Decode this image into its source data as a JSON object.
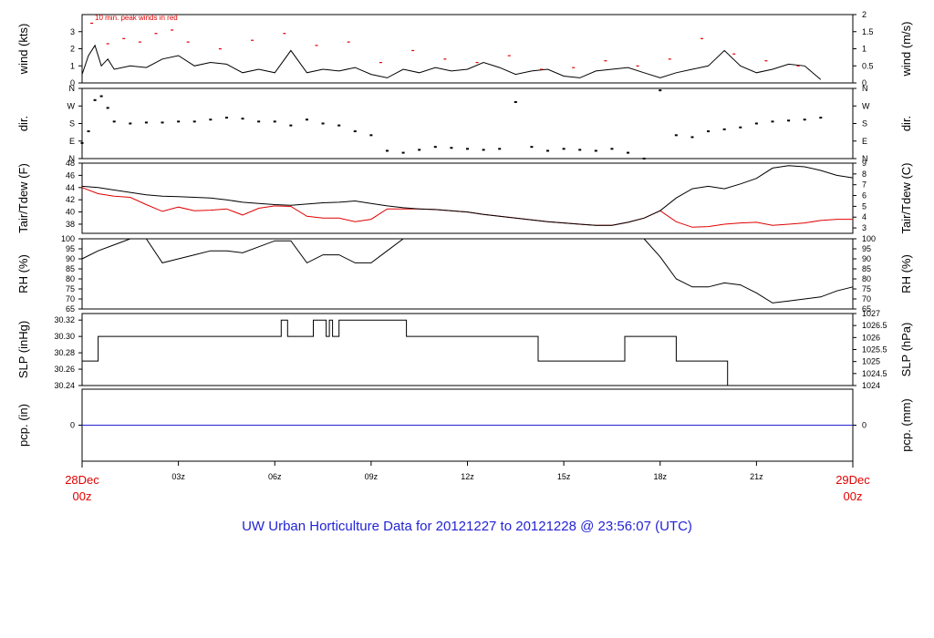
{
  "footer": {
    "title": "UW Urban Horticulture Data for 20121227  to  20121228 @ 23:56:07  (UTC)"
  },
  "x_axis": {
    "ticks": [
      "03z",
      "06z",
      "09z",
      "12z",
      "15z",
      "18z",
      "21z"
    ],
    "start_label": [
      "28Dec",
      "00z"
    ],
    "end_label": [
      "29Dec",
      "00z"
    ]
  },
  "panels": {
    "wind": {
      "left_title": "wind (kts)",
      "right_title": "wind (m/s)",
      "left_ticks": [
        "0",
        "1",
        "2",
        "3"
      ],
      "right_ticks": [
        "0",
        "0.5",
        "1",
        "1.5",
        "2"
      ],
      "annotation": "10 min. peak winds in red"
    },
    "dir": {
      "left_title": "dir.",
      "right_title": "dir.",
      "left_ticks": [
        "N",
        "E",
        "S",
        "W",
        "N"
      ],
      "right_ticks": [
        "N",
        "E",
        "S",
        "W",
        "N"
      ]
    },
    "temp": {
      "left_title": "Tair/Tdew (F)",
      "right_title": "Tair/Tdew (C)",
      "left_ticks": [
        "38",
        "40",
        "42",
        "44",
        "46",
        "48"
      ],
      "right_ticks": [
        "3",
        "4",
        "5",
        "6",
        "7",
        "8",
        "9"
      ]
    },
    "rh": {
      "left_title": "RH (%)",
      "right_title": "RH (%)",
      "left_ticks": [
        "65",
        "70",
        "75",
        "80",
        "85",
        "90",
        "95",
        "100"
      ],
      "right_ticks": [
        "65",
        "70",
        "75",
        "80",
        "85",
        "90",
        "95",
        "100"
      ]
    },
    "slp": {
      "left_title": "SLP (inHg)",
      "right_title": "SLP (hPa)",
      "left_ticks": [
        "30.24",
        "30.26",
        "30.28",
        "30.30",
        "30.32"
      ],
      "right_ticks": [
        "1024",
        "1024.5",
        "1025",
        "1025.5",
        "1026",
        "1026.5",
        "1027"
      ]
    },
    "pcp": {
      "left_title": "pcp. (in)",
      "right_title": "pcp. (mm)",
      "left_ticks": [
        "0"
      ],
      "right_ticks": [
        "0"
      ]
    }
  },
  "colors": {
    "series_main": "#000000",
    "series_secondary": "#e00000",
    "precip": "#2323d6",
    "footer": "#2323d6",
    "date_labels": "#e00000"
  },
  "chart_data": [
    {
      "type": "line",
      "panel": "wind",
      "xlabel": "",
      "ylabel": "wind (kts)",
      "ylim": [
        0,
        4
      ],
      "series": [
        {
          "values_hours": [
            0,
            0.2,
            0.4,
            0.6,
            0.8,
            1,
            1.5,
            2,
            2.5,
            3,
            3.5,
            4,
            4.5,
            5,
            5.5,
            6,
            6.5,
            7,
            7.5,
            8,
            8.5,
            9,
            9.5,
            10,
            10.5,
            11,
            11.5,
            12,
            12.5,
            13,
            13.5,
            14,
            14.5,
            15,
            15.5,
            16,
            16.5,
            17,
            17.5,
            18,
            18.5,
            19,
            19.5,
            20,
            20.5,
            21,
            21.5,
            22,
            22.5,
            23
          ],
          "values": [
            0.5,
            1.6,
            2.2,
            1.0,
            1.4,
            0.8,
            1.0,
            0.9,
            1.4,
            1.6,
            1.0,
            1.2,
            1.1,
            0.6,
            0.8,
            0.6,
            1.9,
            0.6,
            0.8,
            0.7,
            0.9,
            0.5,
            0.3,
            0.8,
            0.6,
            0.9,
            0.7,
            0.8,
            1.2,
            0.9,
            0.5,
            0.7,
            0.8,
            0.4,
            0.3,
            0.7,
            0.8,
            0.9,
            0.6,
            0.3,
            0.6,
            0.8,
            1.0,
            1.9,
            1.0,
            0.6,
            0.8,
            1.1,
            1.0,
            0.2
          ]
        }
      ]
    },
    {
      "type": "scatter",
      "panel": "wind-peaks",
      "ylabel": "wind (kts)",
      "ylim": [
        0,
        4
      ],
      "x_hours": [
        0.3,
        0.8,
        1.3,
        1.8,
        2.3,
        2.8,
        3.3,
        4.3,
        5.3,
        6.3,
        7.3,
        8.3,
        9.3,
        10.3,
        11.3,
        12.3,
        13.3,
        14.3,
        15.3,
        16.3,
        17.3,
        18.3,
        19.3,
        20.3,
        21.3,
        22.3
      ],
      "values": [
        3.5,
        2.3,
        2.6,
        2.4,
        2.9,
        3.1,
        2.4,
        2.0,
        2.5,
        2.9,
        2.2,
        2.4,
        1.2,
        1.9,
        1.4,
        1.2,
        1.6,
        0.8,
        0.9,
        1.3,
        1.0,
        1.4,
        2.6,
        1.7,
        1.3,
        1.0
      ]
    },
    {
      "type": "scatter",
      "panel": "dir",
      "ylabel": "dir.",
      "ylim": [
        0,
        360
      ],
      "x_hours": [
        0,
        0.2,
        0.4,
        0.6,
        0.8,
        1,
        1.5,
        2,
        2.5,
        3,
        3.5,
        4,
        4.5,
        5,
        5.5,
        6,
        6.5,
        7,
        7.5,
        8,
        8.5,
        9,
        9.5,
        10,
        10.5,
        11,
        11.5,
        12,
        12.5,
        13,
        13.5,
        14,
        14.5,
        15,
        15.5,
        16,
        16.5,
        17,
        17.5,
        18,
        18.5,
        19,
        19.5,
        20,
        20.5,
        21,
        21.5,
        22,
        22.5,
        23
      ],
      "values": [
        80,
        140,
        300,
        320,
        260,
        190,
        180,
        185,
        185,
        190,
        190,
        200,
        210,
        205,
        190,
        190,
        170,
        200,
        180,
        170,
        140,
        120,
        40,
        30,
        45,
        60,
        55,
        50,
        45,
        50,
        290,
        60,
        40,
        50,
        45,
        40,
        50,
        30,
        0,
        350,
        120,
        110,
        140,
        150,
        160,
        180,
        190,
        195,
        200,
        210
      ]
    },
    {
      "type": "line",
      "panel": "temp",
      "ylabel": "Tair/Tdew (F)",
      "ylim": [
        36.5,
        48
      ],
      "x_hours": [
        0,
        0.5,
        1,
        1.5,
        2,
        2.5,
        3,
        3.5,
        4,
        4.5,
        5,
        5.5,
        6,
        6.5,
        7,
        7.5,
        8,
        8.5,
        9,
        9.5,
        10,
        10.5,
        11,
        11.5,
        12,
        12.5,
        13,
        13.5,
        14,
        14.5,
        15,
        15.5,
        16,
        16.5,
        17,
        17.5,
        18,
        18.5,
        19,
        19.5,
        20,
        20.5,
        21,
        21.5,
        22,
        22.5,
        23,
        23.5,
        24
      ],
      "series": [
        {
          "name": "Tair",
          "values": [
            44.2,
            44.0,
            43.6,
            43.2,
            42.8,
            42.6,
            42.5,
            42.4,
            42.3,
            42.0,
            41.6,
            41.4,
            41.2,
            41.1,
            41.3,
            41.5,
            41.6,
            41.8,
            41.4,
            41.0,
            40.7,
            40.5,
            40.4,
            40.2,
            40.0,
            39.6,
            39.3,
            39.0,
            38.7,
            38.4,
            38.2,
            38.0,
            37.8,
            37.8,
            38.3,
            39.0,
            40.2,
            42.3,
            43.8,
            44.2,
            43.8,
            44.6,
            45.5,
            47.2,
            47.6,
            47.4,
            46.8,
            46.0,
            45.6
          ]
        },
        {
          "name": "Tdew",
          "values": [
            44.0,
            43.0,
            42.6,
            42.4,
            41.2,
            40.1,
            40.8,
            40.2,
            40.3,
            40.5,
            39.5,
            40.6,
            41.0,
            40.9,
            39.3,
            39.0,
            39.0,
            38.4,
            38.8,
            40.5,
            40.5,
            40.5,
            40.4,
            40.2,
            40.0,
            39.6,
            39.3,
            39.0,
            38.7,
            38.4,
            38.2,
            38.0,
            37.8,
            37.8,
            38.3,
            39.0,
            40.2,
            38.4,
            37.5,
            37.6,
            38.0,
            38.2,
            38.3,
            37.8,
            38.0,
            38.2,
            38.6,
            38.8,
            38.8
          ]
        }
      ]
    },
    {
      "type": "line",
      "panel": "rh",
      "ylabel": "RH (%)",
      "ylim": [
        65,
        100
      ],
      "x_hours": [
        0,
        0.5,
        1,
        1.5,
        2,
        2.5,
        3,
        3.5,
        4,
        4.5,
        5,
        5.5,
        6,
        6.5,
        7,
        7.5,
        8,
        8.5,
        9,
        9.5,
        10,
        10.5,
        11,
        11.5,
        12,
        17.5,
        18,
        18.5,
        19,
        19.5,
        20,
        20.5,
        21,
        21.5,
        22,
        22.5,
        23,
        23.5,
        24
      ],
      "values": [
        90,
        94,
        97,
        100,
        100,
        88,
        90,
        92,
        94,
        94,
        93,
        96,
        99,
        99,
        88,
        92,
        92,
        88,
        88,
        94,
        100,
        100,
        100,
        100,
        100,
        100,
        91,
        80,
        76,
        76,
        78,
        77,
        73,
        68,
        69,
        70,
        71,
        74,
        76
      ]
    },
    {
      "type": "line",
      "panel": "slp",
      "ylabel": "SLP (inHg)",
      "ylim": [
        30.24,
        30.32
      ],
      "x_hours": [
        0,
        0.5,
        0.5,
        6.2,
        6.2,
        6.4,
        6.4,
        7.2,
        7.2,
        7.6,
        7.6,
        7.7,
        7.7,
        7.8,
        7.8,
        8.0,
        8.0,
        10.1,
        10.1,
        10.2,
        10.2,
        14.2,
        14.2,
        16.9,
        16.9,
        18.5,
        18.5,
        20.1,
        20.1,
        24
      ],
      "values": [
        30.27,
        30.27,
        30.3,
        30.3,
        30.32,
        30.32,
        30.3,
        30.3,
        30.32,
        30.32,
        30.3,
        30.3,
        30.32,
        30.32,
        30.3,
        30.3,
        30.32,
        30.32,
        30.3,
        30.3,
        30.3,
        30.3,
        30.27,
        30.27,
        30.3,
        30.3,
        30.27,
        30.27,
        30.24,
        30.24
      ]
    },
    {
      "type": "line",
      "panel": "pcp",
      "ylabel": "pcp. (in)",
      "x_hours": [
        0,
        24
      ],
      "values": [
        0,
        0
      ]
    }
  ]
}
